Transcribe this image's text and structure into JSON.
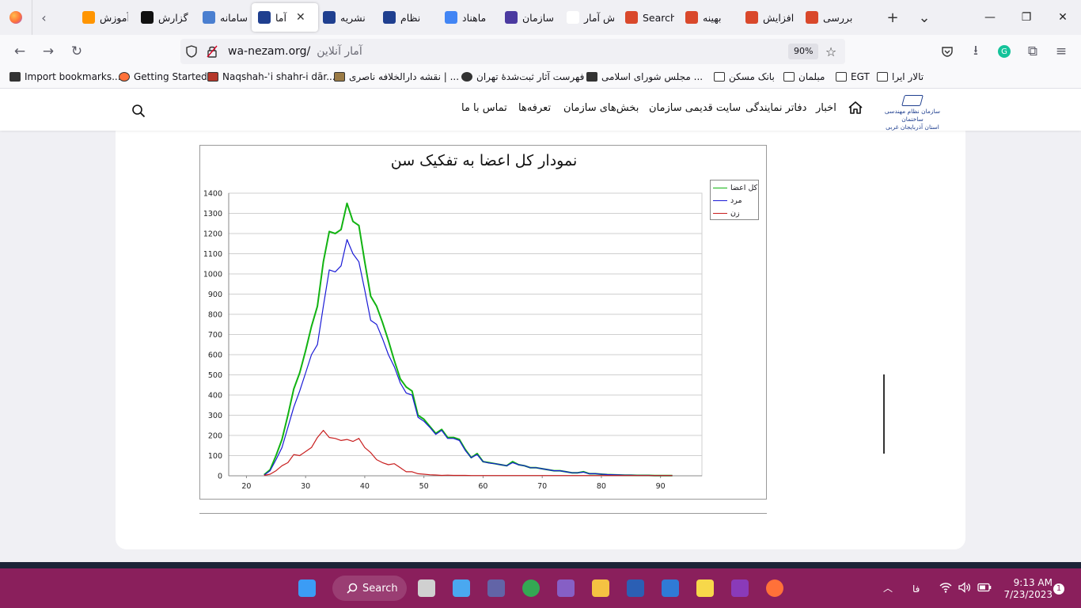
{
  "browser": {
    "tabs": [
      {
        "label": "آموزش",
        "icon": "orange-circle-icon",
        "color": "#ff9500"
      },
      {
        "label": "گزارش",
        "icon": "iran-emblem-icon",
        "color": "#111111"
      },
      {
        "label": "سامانه",
        "icon": "grid-dots-icon",
        "color": "#4a7fd0"
      },
      {
        "label": "آما",
        "icon": "nezam-logo-icon",
        "color": "#1f3f8f",
        "active": true
      },
      {
        "label": "نشریه",
        "icon": "nezam-logo-icon",
        "color": "#1f3f8f"
      },
      {
        "label": "نظام",
        "icon": "nezam-logo-icon",
        "color": "#1f3f8f"
      },
      {
        "label": "ماهناد",
        "icon": "google-icon",
        "color": "#4285f4"
      },
      {
        "label": "سازمان",
        "icon": "pattern-icon",
        "color": "#4b3aa0"
      },
      {
        "label": "گزارش آمار",
        "icon": "",
        "color": "#ffffff"
      },
      {
        "label": "Search",
        "icon": "red-badge-icon",
        "color": "#d9482b"
      },
      {
        "label": "بهینه",
        "icon": "red-badge-icon",
        "color": "#d9482b"
      },
      {
        "label": "افزایش",
        "icon": "red-badge-icon",
        "color": "#d9482b"
      },
      {
        "label": "بررسی",
        "icon": "red-badge-icon",
        "color": "#d9482b"
      }
    ],
    "url": "wa-nezam.org/",
    "page_title": "آمار آنلاین",
    "zoom": "90%",
    "bookmarks": [
      {
        "label": "Import bookmarks...",
        "icon": "import-icon"
      },
      {
        "label": "Getting Started",
        "icon": "firefox-icon"
      },
      {
        "label": "Naqshah-ʾi shahr-i dār...",
        "icon": "map-icon"
      },
      {
        "label": "نقشه دارالخلافه ناصری | ...",
        "icon": "image-icon"
      },
      {
        "label": "فهرست آثار ثبت‌شدهٔ تهران",
        "icon": "globe-icon"
      },
      {
        "label": "مجلس شورای اسلامی ...",
        "icon": "iran-emblem-icon"
      },
      {
        "label": "بانک مسکن",
        "icon": "folder-icon"
      },
      {
        "label": "مبلمان",
        "icon": "folder-icon"
      },
      {
        "label": "EGT",
        "icon": "folder-icon"
      },
      {
        "label": "تالار ایرا",
        "icon": "folder-icon"
      }
    ]
  },
  "site": {
    "logo_line1": "سازمان نظام مهندسی ساختمان",
    "logo_line2": "استان آذربایجان غربی",
    "menu": {
      "home": "home-icon",
      "news": "اخبار",
      "offices": "دفاتر نمایندگی",
      "old_site": "سایت قدیمی سازمان",
      "sections": "بخش‌های سازمان",
      "tariffs": "تعرفه‌ها",
      "contact": "تماس با ما"
    }
  },
  "chart_data": {
    "type": "line",
    "title": "نمودار کل اعضا به تفکیک سن",
    "xlabel": "",
    "ylabel": "",
    "xlim": [
      17,
      97
    ],
    "ylim": [
      0,
      1400
    ],
    "xticks": [
      20,
      30,
      40,
      50,
      60,
      70,
      80,
      90
    ],
    "yticks": [
      0,
      100,
      200,
      300,
      400,
      500,
      600,
      700,
      800,
      900,
      1000,
      1100,
      1200,
      1300,
      1400
    ],
    "grid": true,
    "legend_position": "top-right",
    "series": [
      {
        "name": "کل اعضا",
        "color": "#12b312",
        "x": [
          23,
          24,
          25,
          26,
          27,
          28,
          29,
          30,
          31,
          32,
          33,
          34,
          35,
          36,
          37,
          38,
          39,
          40,
          41,
          42,
          43,
          44,
          45,
          46,
          47,
          48,
          49,
          50,
          51,
          52,
          53,
          54,
          55,
          56,
          57,
          58,
          59,
          60,
          61,
          62,
          63,
          64,
          65,
          66,
          67,
          68,
          69,
          70,
          71,
          72,
          73,
          74,
          75,
          76,
          77,
          78,
          79,
          80,
          81,
          82,
          83,
          84,
          85,
          86,
          87,
          88,
          89,
          90,
          91,
          92
        ],
        "y": [
          5,
          30,
          100,
          180,
          300,
          430,
          510,
          620,
          740,
          840,
          1060,
          1210,
          1200,
          1220,
          1350,
          1260,
          1240,
          1060,
          890,
          840,
          760,
          670,
          570,
          480,
          440,
          420,
          300,
          280,
          245,
          210,
          230,
          190,
          190,
          180,
          130,
          90,
          110,
          70,
          65,
          60,
          55,
          50,
          70,
          55,
          50,
          40,
          40,
          35,
          30,
          25,
          25,
          20,
          15,
          15,
          20,
          10,
          10,
          8,
          6,
          5,
          4,
          3,
          3,
          2,
          2,
          2,
          1,
          1,
          1,
          1
        ]
      },
      {
        "name": "مرد",
        "color": "#1a1ad6",
        "x": [
          23,
          24,
          25,
          26,
          27,
          28,
          29,
          30,
          31,
          32,
          33,
          34,
          35,
          36,
          37,
          38,
          39,
          40,
          41,
          42,
          43,
          44,
          45,
          46,
          47,
          48,
          49,
          50,
          51,
          52,
          53,
          54,
          55,
          56,
          57,
          58,
          59,
          60,
          61,
          62,
          63,
          64,
          65,
          66,
          67,
          68,
          69,
          70,
          71,
          72,
          73,
          74,
          75,
          76,
          77,
          78,
          79,
          80,
          81,
          82,
          83,
          84,
          85,
          86,
          87,
          88,
          89,
          90,
          91,
          92
        ],
        "y": [
          3,
          25,
          80,
          140,
          240,
          340,
          420,
          510,
          600,
          650,
          840,
          1020,
          1010,
          1040,
          1170,
          1100,
          1060,
          920,
          770,
          750,
          680,
          600,
          540,
          460,
          410,
          400,
          290,
          270,
          240,
          205,
          225,
          185,
          185,
          175,
          125,
          90,
          105,
          70,
          63,
          60,
          55,
          50,
          65,
          55,
          50,
          40,
          40,
          35,
          30,
          25,
          25,
          20,
          15,
          15,
          18,
          10,
          10,
          8,
          6,
          5,
          4,
          3,
          3,
          2,
          2,
          2,
          1,
          1,
          1,
          1
        ]
      },
      {
        "name": "زن",
        "color": "#c81e1e",
        "x": [
          23,
          24,
          25,
          26,
          27,
          28,
          29,
          30,
          31,
          32,
          33,
          34,
          35,
          36,
          37,
          38,
          39,
          40,
          41,
          42,
          43,
          44,
          45,
          46,
          47,
          48,
          49,
          50,
          51,
          52,
          53,
          54,
          55,
          56,
          57,
          58,
          59,
          60,
          61,
          62,
          63,
          64,
          65,
          66,
          67,
          68,
          69,
          70,
          71,
          72,
          73,
          74,
          75,
          76,
          77,
          78,
          79,
          80,
          81,
          82,
          83,
          84,
          85,
          86,
          87,
          88,
          89,
          90,
          91,
          92
        ],
        "y": [
          2,
          8,
          25,
          50,
          65,
          105,
          100,
          120,
          140,
          190,
          225,
          190,
          185,
          175,
          180,
          170,
          185,
          140,
          115,
          80,
          65,
          55,
          60,
          40,
          20,
          20,
          10,
          8,
          5,
          4,
          2,
          3,
          2,
          2,
          2,
          1,
          1,
          1,
          1,
          1,
          1,
          1,
          1,
          1,
          1,
          1,
          1,
          1,
          1,
          1,
          1,
          1,
          1,
          1,
          1,
          1,
          1,
          1,
          1,
          1,
          1,
          1,
          1,
          1,
          1,
          1,
          1,
          1,
          1,
          1
        ]
      }
    ]
  },
  "taskbar": {
    "search_label": "Search",
    "apps": [
      {
        "name": "windows-start-icon",
        "color": "#3b9cf5"
      },
      {
        "name": "file-explorer-alt-icon",
        "color": "#d0d0d0"
      },
      {
        "name": "widgets-icon",
        "color": "#4aa8f0"
      },
      {
        "name": "meet-icon",
        "color": "#6264a7"
      },
      {
        "name": "chrome-icon",
        "color": "#34a853"
      },
      {
        "name": "visual-studio-icon",
        "color": "#865fc5"
      },
      {
        "name": "file-explorer-icon",
        "color": "#f5c242"
      },
      {
        "name": "word-icon",
        "color": "#2b5fb4"
      },
      {
        "name": "mail-icon",
        "color": "#2f7bd6"
      },
      {
        "name": "sticky-notes-icon",
        "color": "#f7d84a"
      },
      {
        "name": "onenote-icon",
        "color": "#8a3ab9"
      },
      {
        "name": "firefox-icon",
        "color": "#ff7139"
      }
    ],
    "language": "فا",
    "time": "9:13 AM",
    "date": "7/23/2023",
    "notifications": "1"
  }
}
